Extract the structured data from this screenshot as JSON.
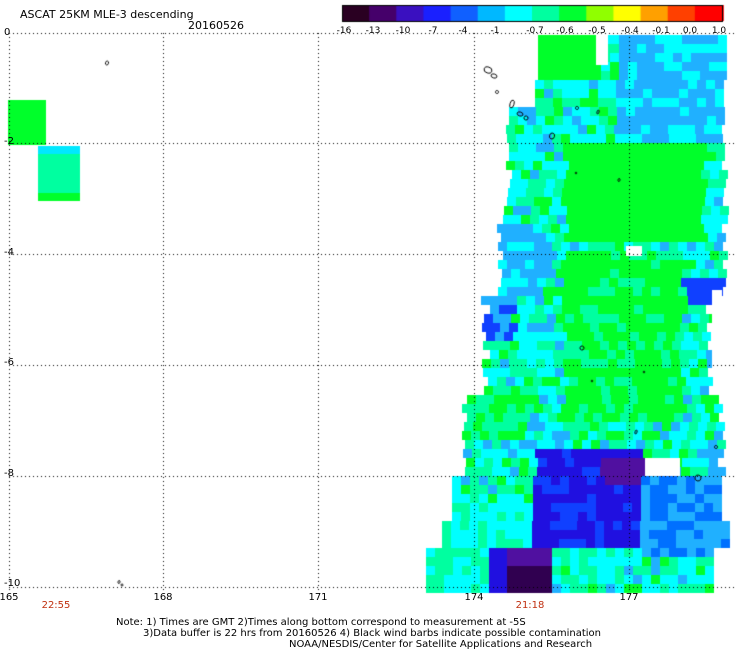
{
  "header": {
    "title": "ASCAT 25KM MLE-3 descending",
    "date": "20160526"
  },
  "colorbar": {
    "labels": [
      "-16",
      "-13",
      "-10",
      "-7",
      "-4",
      "-1",
      "-0.7",
      "-0.6",
      "-0.5",
      "-0.4",
      "-0.1",
      "0.0",
      "1.0"
    ],
    "colors": [
      "#2a0022",
      "#45006a",
      "#3a10c0",
      "#1a20ff",
      "#1060ff",
      "#00b8ff",
      "#00ffff",
      "#00ffa0",
      "#00ff30",
      "#90ff00",
      "#ffff00",
      "#ffa000",
      "#ff4000",
      "#ff0000"
    ]
  },
  "axes": {
    "lat_labels": [
      "0",
      "-2",
      "-4",
      "-6",
      "-8",
      "-10"
    ],
    "lon_labels": [
      "165",
      "168",
      "171",
      "174",
      "177"
    ]
  },
  "times": [
    "22:55",
    "21:18"
  ],
  "footer": {
    "line1": "Note: 1) Times are GMT 2)Times along bottom correspond to measurement at -5S",
    "line2": "3)Data buffer is 22 hrs from 20160526 4) Black wind barbs indicate possible contamination",
    "line3": "NOAA/NESDIS/Center for Satellite Applications and Research"
  },
  "colors": {
    "green": "#00ff2a",
    "aqua": "#00ffa0",
    "cyan": "#00ffff",
    "lightblue": "#20b0ff",
    "blue": "#1040ff",
    "deepblue": "#2010e0",
    "purple": "#5010a0",
    "darkpurple": "#300050"
  }
}
